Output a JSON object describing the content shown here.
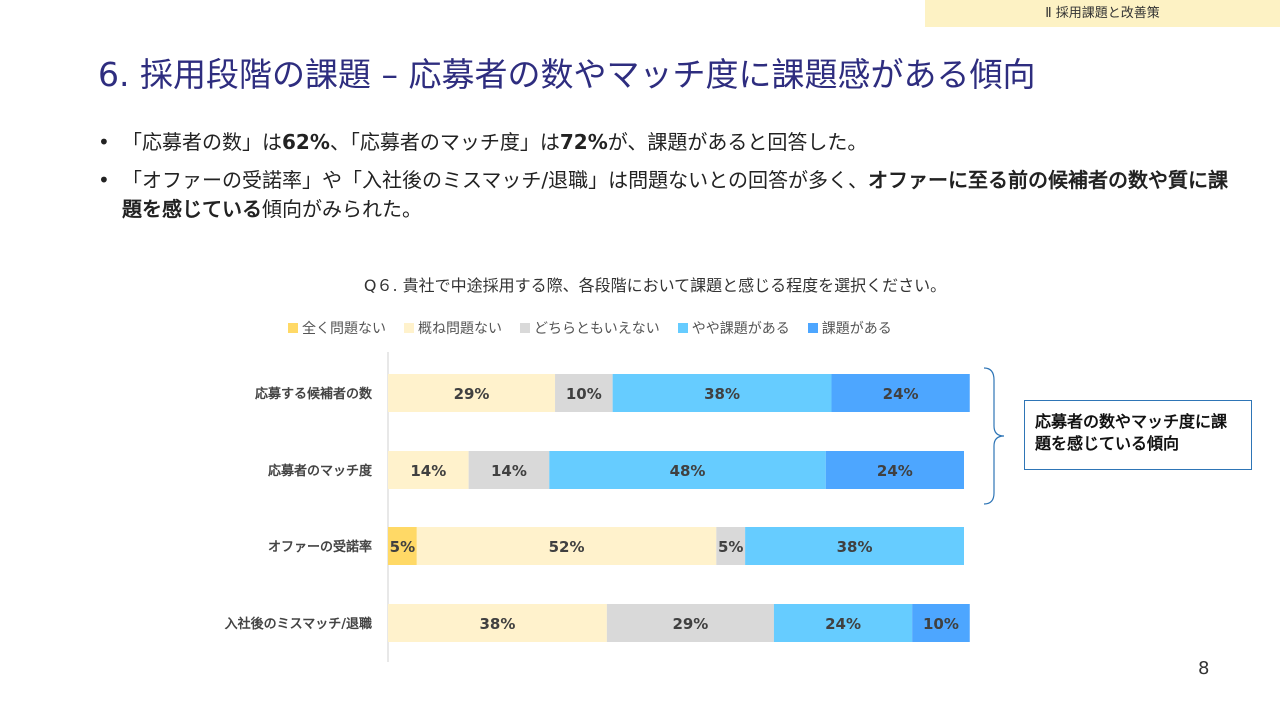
{
  "header": {
    "section_tag": "Ⅱ 採用課題と改善策"
  },
  "title": "6. 採用段階の課題 – 応募者の数やマッチ度に課題感がある傾向",
  "bullets": [
    {
      "segments": [
        "「応募者の数」は",
        "62%",
        "、「応募者のマッチ度」は",
        "72%",
        "が、課題があると回答した。"
      ]
    },
    {
      "segments": [
        "「オファーの受諾率」や「入社後のミスマッチ/退職」は問題ないとの回答が多く、",
        "オファーに至る前の候補者の数や質に課題を感じている",
        "傾向がみられた。"
      ]
    }
  ],
  "callout": {
    "text": "応募者の数やマッチ度に課題を感じている傾向"
  },
  "page_number": "8",
  "chart_data": {
    "type": "bar",
    "orientation": "horizontal",
    "stacked": true,
    "title": "Q６. 貴社で中途採用する際、各段階において課題と感じる程度を選択ください。",
    "categories": [
      "応募する候補者の数",
      "応募者のマッチ度",
      "オファーの受諾率",
      "入社後のミスマッチ/退職"
    ],
    "series": [
      {
        "name": "全く問題ない",
        "color": "#ffd966",
        "values": [
          0,
          0,
          5,
          0
        ]
      },
      {
        "name": "概ね問題ない",
        "color": "#fff2cc",
        "values": [
          29,
          14,
          52,
          38
        ]
      },
      {
        "name": "どちらともいえない",
        "color": "#d9d9d9",
        "values": [
          10,
          14,
          5,
          29
        ]
      },
      {
        "name": "やや課題がある",
        "color": "#66ccff",
        "values": [
          38,
          48,
          38,
          24
        ]
      },
      {
        "name": "課題がある",
        "color": "#4da6ff",
        "values": [
          24,
          24,
          0,
          10
        ]
      }
    ],
    "value_suffix": "%",
    "legend_position": "top"
  }
}
